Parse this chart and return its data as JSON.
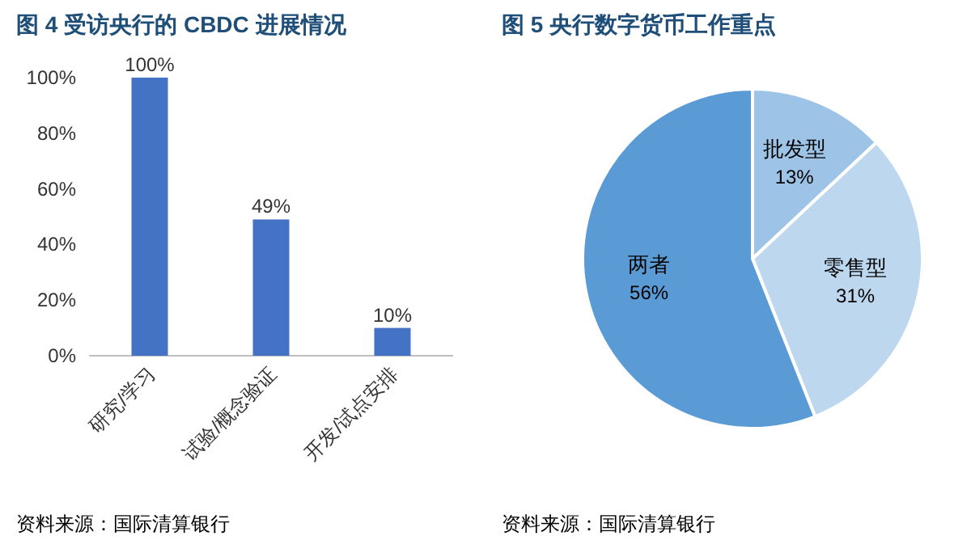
{
  "chart_data": [
    {
      "type": "bar",
      "title": "图 4 受访央行的 CBDC 进展情况",
      "categories": [
        "研究/学习",
        "试验/概念验证",
        "开发/试点安排"
      ],
      "values": [
        100,
        49,
        10
      ],
      "value_labels": [
        "100%",
        "49%",
        "10%"
      ],
      "color": "#4472c4",
      "ylim": [
        0,
        100
      ],
      "yticks": [
        {
          "value": 0,
          "label": "0%"
        },
        {
          "value": 20,
          "label": "20%"
        },
        {
          "value": 40,
          "label": "40%"
        },
        {
          "value": 60,
          "label": "60%"
        },
        {
          "value": 80,
          "label": "80%"
        },
        {
          "value": 100,
          "label": "100%"
        }
      ],
      "annotations": [
        "资料来源：国际清算银行"
      ]
    },
    {
      "type": "pie",
      "title": "图 5 央行数字货币工作重点",
      "categories": [
        "批发型",
        "零售型",
        "两者"
      ],
      "values": [
        13,
        31,
        56
      ],
      "value_labels": [
        "13%",
        "31%",
        "56%"
      ],
      "colors": [
        "#9dc3e6",
        "#bdd7ee",
        "#5b9bd5"
      ],
      "annotations": [
        "资料来源：国际清算银行"
      ]
    }
  ]
}
